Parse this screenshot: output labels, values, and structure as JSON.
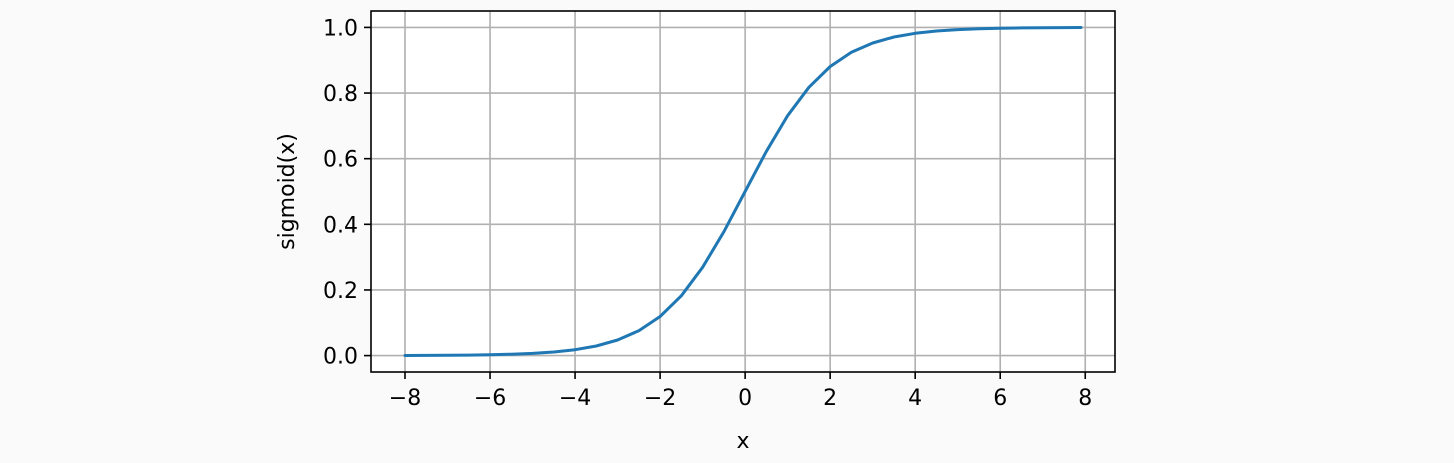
{
  "chart_data": {
    "type": "line",
    "title": "",
    "xlabel": "x",
    "ylabel": "sigmoid(x)",
    "xlim": [
      -8.8,
      8.7
    ],
    "ylim": [
      -0.05,
      1.05
    ],
    "x_ticks": [
      -8,
      -6,
      -4,
      -2,
      0,
      2,
      4,
      6,
      8
    ],
    "x_tick_labels": [
      "−8",
      "−6",
      "−4",
      "−2",
      "0",
      "2",
      "4",
      "6",
      "8"
    ],
    "y_ticks": [
      0.0,
      0.2,
      0.4,
      0.6,
      0.8,
      1.0
    ],
    "y_tick_labels": [
      "0.0",
      "0.2",
      "0.4",
      "0.6",
      "0.8",
      "1.0"
    ],
    "grid": true,
    "series": [
      {
        "color": "#1f77b4",
        "x": [
          -8.0,
          -7.5,
          -7.0,
          -6.5,
          -6.0,
          -5.5,
          -5.0,
          -4.5,
          -4.0,
          -3.5,
          -3.0,
          -2.5,
          -2.0,
          -1.5,
          -1.0,
          -0.5,
          0.0,
          0.5,
          1.0,
          1.5,
          2.0,
          2.5,
          3.0,
          3.5,
          4.0,
          4.5,
          5.0,
          5.5,
          6.0,
          6.5,
          7.0,
          7.5,
          7.9
        ],
        "y": [
          0.0003,
          0.0006,
          0.0009,
          0.0015,
          0.0025,
          0.0041,
          0.0067,
          0.011,
          0.018,
          0.0293,
          0.0474,
          0.0759,
          0.1192,
          0.1824,
          0.2689,
          0.3775,
          0.5,
          0.6225,
          0.7311,
          0.8176,
          0.8808,
          0.9241,
          0.9526,
          0.9707,
          0.982,
          0.989,
          0.9933,
          0.9959,
          0.9975,
          0.9985,
          0.9991,
          0.9994,
          0.9996
        ]
      }
    ]
  }
}
